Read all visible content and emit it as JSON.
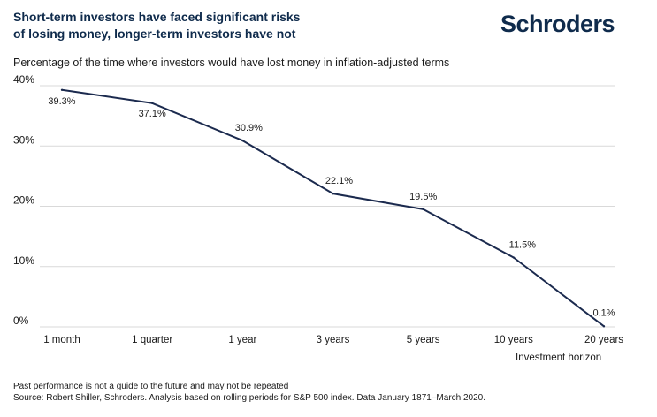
{
  "header": {
    "title_line1": "Short-term investors have faced significant risks",
    "title_line2": "of losing money, longer-term investors have not",
    "logo_text": "Schroders",
    "subtitle": "Percentage of the time where investors would have lost money in inflation-adjusted terms"
  },
  "footer": {
    "note1": "Past performance is not a guide to the future and may not be repeated",
    "note2": "Source: Robert Shiller, Schroders. Analysis based on rolling periods for S&P 500 index. Data January 1871–March 2020."
  },
  "colors": {
    "line": "#1b2a4e",
    "grid": "#d9d9d9",
    "brand": "#0f2b4c"
  },
  "chart_data": {
    "type": "line",
    "categories": [
      "1 month",
      "1 quarter",
      "1 year",
      "3 years",
      "5 years",
      "10 years",
      "20 years"
    ],
    "series": [
      {
        "values": [
          39.3,
          37.1,
          30.9,
          22.1,
          19.5,
          11.5,
          0.1
        ],
        "labels": [
          "39.3%",
          "37.1%",
          "30.9%",
          "22.1%",
          "19.5%",
          "11.5%",
          "0.1%"
        ]
      }
    ],
    "ylim": [
      0,
      40
    ],
    "yticks": [
      0,
      10,
      20,
      30,
      40
    ],
    "ytick_labels": [
      "0%",
      "10%",
      "20%",
      "30%",
      "40%"
    ],
    "xlabel": "Investment horizon",
    "ylabel": "",
    "grid": true
  }
}
